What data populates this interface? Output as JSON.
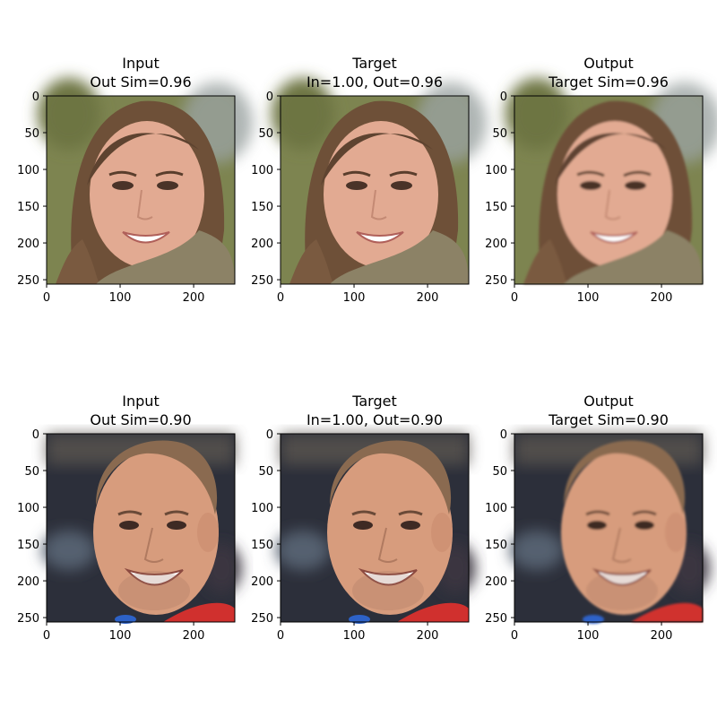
{
  "chart_data": [
    {
      "type": "image",
      "title": [
        "Input",
        "Out Sim=0.96"
      ],
      "xticks": [
        0,
        100,
        200
      ],
      "yticks": [
        0,
        50,
        100,
        150,
        200,
        250
      ],
      "xlim": [
        0,
        256
      ],
      "ylim": [
        256,
        0
      ],
      "image": "smiling young woman with long brown hair and a knit scarf, outdoor blurred background"
    },
    {
      "type": "image",
      "title": [
        "Target",
        "In=1.00, Out=0.96"
      ],
      "xticks": [
        0,
        100,
        200
      ],
      "yticks": [
        0,
        50,
        100,
        150,
        200,
        250
      ],
      "xlim": [
        0,
        256
      ],
      "ylim": [
        256,
        0
      ],
      "image": "smiling young woman with long brown hair and a knit scarf, outdoor blurred background"
    },
    {
      "type": "image",
      "title": [
        "Output",
        "Target Sim=0.96"
      ],
      "xticks": [
        0,
        100,
        200
      ],
      "yticks": [
        0,
        50,
        100,
        150,
        200,
        250
      ],
      "xlim": [
        0,
        256
      ],
      "ylim": [
        256,
        0
      ],
      "image": "smiling young woman with long brown hair and a knit scarf, smoother rendering"
    },
    {
      "type": "image",
      "title": [
        "Input",
        "Out Sim=0.90"
      ],
      "xticks": [
        0,
        100,
        200
      ],
      "yticks": [
        0,
        50,
        100,
        150,
        200,
        250
      ],
      "xlim": [
        0,
        256
      ],
      "ylim": [
        256,
        0
      ],
      "image": "smiling man with short hair, red shirt, dark blurred background"
    },
    {
      "type": "image",
      "title": [
        "Target",
        "In=1.00, Out=0.90"
      ],
      "xticks": [
        0,
        100,
        200
      ],
      "yticks": [
        0,
        50,
        100,
        150,
        200,
        250
      ],
      "xlim": [
        0,
        256
      ],
      "ylim": [
        256,
        0
      ],
      "image": "smiling man with short hair, red shirt, dark blurred background"
    },
    {
      "type": "image",
      "title": [
        "Output",
        "Target Sim=0.90"
      ],
      "xticks": [
        0,
        100,
        200
      ],
      "yticks": [
        0,
        50,
        100,
        150,
        200,
        250
      ],
      "xlim": [
        0,
        256
      ],
      "ylim": [
        256,
        0
      ],
      "image": "smiling man with short hair, red shirt, smoother rendering"
    }
  ],
  "colors": {
    "bg_woman": "#7d8450",
    "hair_woman": "#6e5038",
    "skin_woman": "#e2aa92",
    "scarf": "#8c8266",
    "bg_man": "#2c2f3a",
    "skin_man": "#d79c7d",
    "hair_man": "#8a6a50",
    "shirt": "#d0302e",
    "blue": "#2d62c8"
  }
}
